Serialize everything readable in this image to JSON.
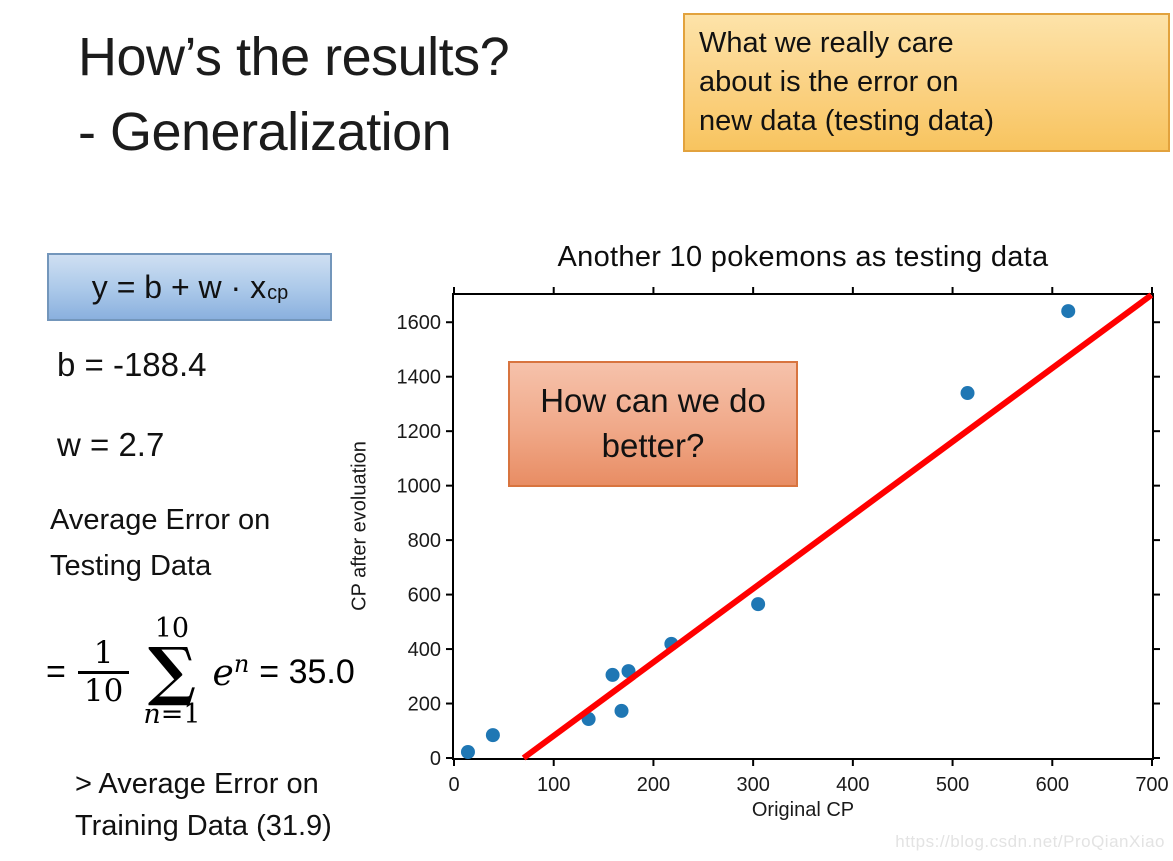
{
  "slide": {
    "title_lines": [
      "How’s the results?",
      "- Generalization"
    ],
    "callout_lines": [
      "What we really care",
      "about is the error on",
      "new data (testing data)"
    ],
    "model": {
      "formula_pre": "y = b + w · x",
      "formula_sub": "cp"
    },
    "b_value": "b = -188.4",
    "w_value": "w = 2.7",
    "avg_error_label": "Average Error on Testing Data",
    "formula": {
      "eq": "=",
      "frac_num": "1",
      "frac_den": "10",
      "sum_top": "10",
      "sum_symbol": "∑",
      "sum_bottom_var": "n",
      "sum_bottom_rest": "=1",
      "term_base": "e",
      "term_exp": "n",
      "result": "= 35.0"
    },
    "comparison_lines": [
      "> Average Error on",
      "Training Data (31.9)"
    ],
    "question_box": "How can we do better?",
    "watermark": "https://blog.csdn.net/ProQianXiao"
  },
  "chart_data": {
    "type": "scatter",
    "title": "Another 10 pokemons as testing data",
    "xlabel": "Original CP",
    "ylabel": "CP after evoluation",
    "xlim": [
      0,
      700
    ],
    "ylim": [
      0,
      1700
    ],
    "x_ticks": [
      0,
      100,
      200,
      300,
      400,
      500,
      600,
      700
    ],
    "y_ticks": [
      0,
      200,
      400,
      600,
      800,
      1000,
      1200,
      1400,
      1600
    ],
    "grid": false,
    "legend": null,
    "points": [
      [
        14,
        22
      ],
      [
        39,
        84
      ],
      [
        135,
        143
      ],
      [
        168,
        173
      ],
      [
        159,
        305
      ],
      [
        175,
        319
      ],
      [
        218,
        419
      ],
      [
        305,
        565
      ],
      [
        515,
        1340
      ],
      [
        616,
        1641
      ]
    ],
    "point_color": "#1f77b4",
    "point_radius": 7,
    "regression_line": {
      "w": 2.7,
      "b": -188.4,
      "color": "#ff0000",
      "width": 6
    }
  }
}
